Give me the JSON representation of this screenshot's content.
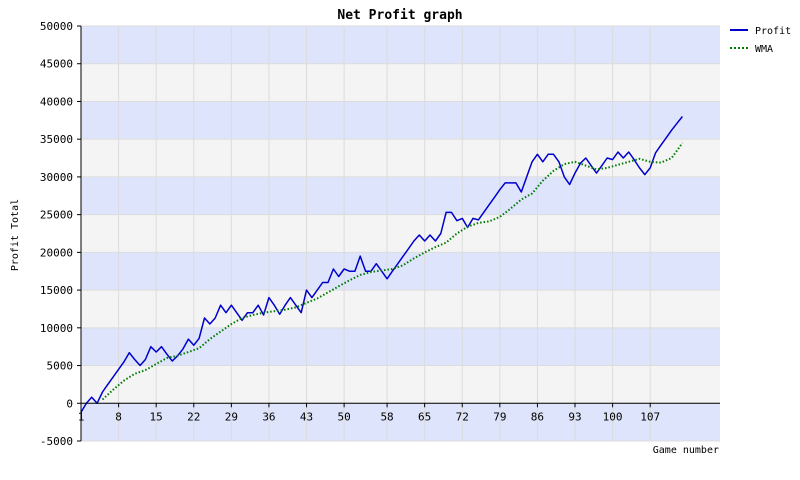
{
  "chart_data": {
    "type": "line",
    "title": "Net Profit graph",
    "xlabel": "Game number",
    "ylabel": "Profit Total",
    "xlim": [
      1,
      120
    ],
    "ylim": [
      -5000,
      50000
    ],
    "x_ticks": [
      1,
      8,
      15,
      22,
      29,
      36,
      43,
      50,
      58,
      65,
      72,
      79,
      86,
      93,
      100,
      107
    ],
    "y_ticks": [
      -5000,
      0,
      5000,
      10000,
      15000,
      20000,
      25000,
      30000,
      35000,
      40000,
      45000,
      50000
    ],
    "grid": true,
    "legend_position": "top-right",
    "colors": {
      "band_blue": "#dde4fb",
      "band_gray": "#f4f4f4",
      "grid": "#dcdcdc",
      "profit": "#0000cc",
      "wma": "#007a00"
    },
    "series": [
      {
        "name": "Profit",
        "style": "solid",
        "points": [
          [
            1,
            -1200
          ],
          [
            2,
            0
          ],
          [
            3,
            800
          ],
          [
            4,
            0
          ],
          [
            5,
            1500
          ],
          [
            6,
            2500
          ],
          [
            7,
            3500
          ],
          [
            8,
            4500
          ],
          [
            9,
            5500
          ],
          [
            10,
            6700
          ],
          [
            11,
            5800
          ],
          [
            12,
            5000
          ],
          [
            13,
            5800
          ],
          [
            14,
            7500
          ],
          [
            15,
            6800
          ],
          [
            16,
            7500
          ],
          [
            17,
            6500
          ],
          [
            18,
            5600
          ],
          [
            19,
            6300
          ],
          [
            20,
            7200
          ],
          [
            21,
            8500
          ],
          [
            22,
            7700
          ],
          [
            23,
            8600
          ],
          [
            24,
            11300
          ],
          [
            25,
            10500
          ],
          [
            26,
            11300
          ],
          [
            27,
            13000
          ],
          [
            28,
            12000
          ],
          [
            29,
            13000
          ],
          [
            30,
            12000
          ],
          [
            31,
            11000
          ],
          [
            32,
            12000
          ],
          [
            33,
            12000
          ],
          [
            34,
            13000
          ],
          [
            35,
            11700
          ],
          [
            36,
            14000
          ],
          [
            37,
            13000
          ],
          [
            38,
            11800
          ],
          [
            39,
            13000
          ],
          [
            40,
            14000
          ],
          [
            41,
            13000
          ],
          [
            42,
            12000
          ],
          [
            43,
            15000
          ],
          [
            44,
            14000
          ],
          [
            45,
            15000
          ],
          [
            46,
            16000
          ],
          [
            47,
            16000
          ],
          [
            48,
            17800
          ],
          [
            49,
            16800
          ],
          [
            50,
            17800
          ],
          [
            51,
            17500
          ],
          [
            52,
            17500
          ],
          [
            53,
            19500
          ],
          [
            54,
            17500
          ],
          [
            55,
            17500
          ],
          [
            56,
            18500
          ],
          [
            57,
            17500
          ],
          [
            58,
            16500
          ],
          [
            59,
            17500
          ],
          [
            60,
            18500
          ],
          [
            61,
            19500
          ],
          [
            62,
            20500
          ],
          [
            63,
            21500
          ],
          [
            64,
            22300
          ],
          [
            65,
            21500
          ],
          [
            66,
            22300
          ],
          [
            67,
            21500
          ],
          [
            68,
            22500
          ],
          [
            69,
            25300
          ],
          [
            70,
            25300
          ],
          [
            71,
            24200
          ],
          [
            72,
            24500
          ],
          [
            73,
            23300
          ],
          [
            74,
            24500
          ],
          [
            75,
            24300
          ],
          [
            76,
            25300
          ],
          [
            77,
            26300
          ],
          [
            78,
            27300
          ],
          [
            79,
            28300
          ],
          [
            80,
            29200
          ],
          [
            81,
            29200
          ],
          [
            82,
            29200
          ],
          [
            83,
            28000
          ],
          [
            84,
            30000
          ],
          [
            85,
            32000
          ],
          [
            86,
            33000
          ],
          [
            87,
            32000
          ],
          [
            88,
            33000
          ],
          [
            89,
            33000
          ],
          [
            90,
            32000
          ],
          [
            91,
            30000
          ],
          [
            92,
            29000
          ],
          [
            93,
            30500
          ],
          [
            94,
            31800
          ],
          [
            95,
            32500
          ],
          [
            96,
            31500
          ],
          [
            97,
            30500
          ],
          [
            98,
            31500
          ],
          [
            99,
            32500
          ],
          [
            100,
            32300
          ],
          [
            101,
            33300
          ],
          [
            102,
            32500
          ],
          [
            103,
            33300
          ],
          [
            104,
            32300
          ],
          [
            105,
            31200
          ],
          [
            106,
            30300
          ],
          [
            107,
            31200
          ],
          [
            108,
            33200
          ],
          [
            109,
            34200
          ],
          [
            110,
            35200
          ],
          [
            111,
            36200
          ],
          [
            112,
            37100
          ],
          [
            113,
            38000
          ]
        ]
      },
      {
        "name": "WMA",
        "style": "dotted",
        "points": [
          [
            5,
            500
          ],
          [
            7,
            1800
          ],
          [
            9,
            3000
          ],
          [
            11,
            3900
          ],
          [
            13,
            4400
          ],
          [
            15,
            5200
          ],
          [
            17,
            6000
          ],
          [
            19,
            6300
          ],
          [
            21,
            6800
          ],
          [
            23,
            7300
          ],
          [
            25,
            8500
          ],
          [
            27,
            9500
          ],
          [
            29,
            10500
          ],
          [
            31,
            11300
          ],
          [
            33,
            11700
          ],
          [
            35,
            12000
          ],
          [
            37,
            12200
          ],
          [
            39,
            12400
          ],
          [
            41,
            12700
          ],
          [
            43,
            13300
          ],
          [
            45,
            13900
          ],
          [
            47,
            14700
          ],
          [
            49,
            15500
          ],
          [
            51,
            16300
          ],
          [
            53,
            17000
          ],
          [
            55,
            17400
          ],
          [
            57,
            17600
          ],
          [
            59,
            17800
          ],
          [
            61,
            18300
          ],
          [
            63,
            19200
          ],
          [
            65,
            20000
          ],
          [
            67,
            20700
          ],
          [
            69,
            21300
          ],
          [
            71,
            22500
          ],
          [
            73,
            23400
          ],
          [
            75,
            23900
          ],
          [
            77,
            24100
          ],
          [
            79,
            24700
          ],
          [
            81,
            25800
          ],
          [
            83,
            27000
          ],
          [
            85,
            27800
          ],
          [
            87,
            29500
          ],
          [
            89,
            30800
          ],
          [
            91,
            31700
          ],
          [
            93,
            32000
          ],
          [
            95,
            31500
          ],
          [
            97,
            31000
          ],
          [
            99,
            31200
          ],
          [
            101,
            31600
          ],
          [
            103,
            32000
          ],
          [
            105,
            32400
          ],
          [
            107,
            32000
          ],
          [
            109,
            31900
          ],
          [
            111,
            32500
          ],
          [
            113,
            34500
          ]
        ]
      }
    ]
  }
}
